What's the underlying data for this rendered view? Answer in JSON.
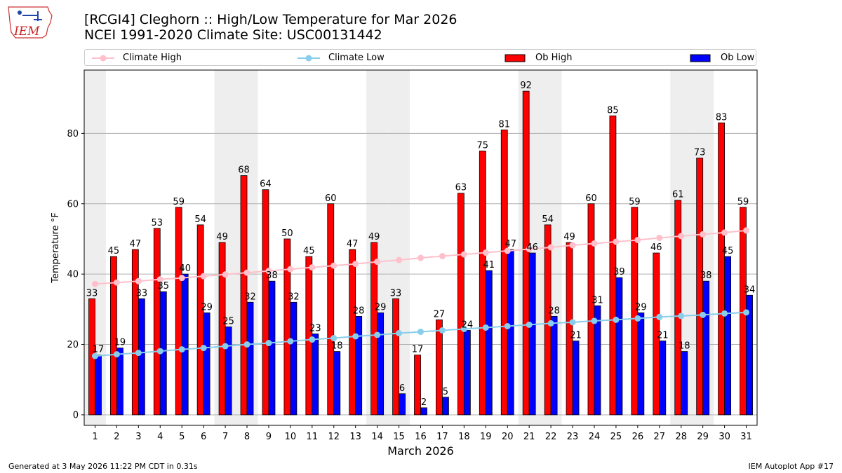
{
  "header": {
    "logo_text": "IEM",
    "title_line1": "[RCGI4] Cleghorn :: High/Low Temperature for Mar 2026",
    "title_line2": "NCEI 1991-2020 Climate Site: USC00131442"
  },
  "footer": {
    "generated": "Generated at 3 May 2026 11:22 PM CDT in 0.31s",
    "app": "IEM Autoplot App #17"
  },
  "colors": {
    "ob_high": "#ff0000",
    "ob_low": "#0000ff",
    "climate_high": "#ffc0cb",
    "climate_low": "#87ceeb",
    "weekend_band": "#eeeeee",
    "grid": "#b0b0b0"
  },
  "chart_data": {
    "type": "bar",
    "xlabel": "March 2026",
    "ylabel": "Temperature °F",
    "ylim": [
      -3,
      98
    ],
    "yticks": [
      0,
      20,
      40,
      60,
      80
    ],
    "grid": "horizontal",
    "legend_position": "top",
    "categories": [
      "1",
      "2",
      "3",
      "4",
      "5",
      "6",
      "7",
      "8",
      "9",
      "10",
      "11",
      "12",
      "13",
      "14",
      "15",
      "16",
      "17",
      "18",
      "19",
      "20",
      "21",
      "22",
      "23",
      "24",
      "25",
      "26",
      "27",
      "28",
      "29",
      "30",
      "31"
    ],
    "weekend_days": [
      1,
      7,
      8,
      14,
      15,
      21,
      22,
      28,
      29
    ],
    "series": [
      {
        "name": "Climate High",
        "kind": "line",
        "values": [
          37.2,
          37.6,
          38.0,
          38.5,
          38.9,
          39.4,
          39.9,
          40.4,
          40.9,
          41.4,
          41.9,
          42.4,
          42.9,
          43.5,
          44.0,
          44.6,
          45.1,
          45.6,
          46.1,
          46.6,
          47.1,
          47.6,
          48.2,
          48.7,
          49.2,
          49.7,
          50.3,
          50.8,
          51.3,
          51.8,
          52.4
        ]
      },
      {
        "name": "Climate Low",
        "kind": "line",
        "values": [
          16.7,
          17.2,
          17.6,
          18.1,
          18.6,
          19.0,
          19.5,
          20.0,
          20.4,
          20.9,
          21.4,
          21.8,
          22.3,
          22.7,
          23.2,
          23.6,
          24.0,
          24.4,
          24.8,
          25.2,
          25.6,
          26.0,
          26.3,
          26.7,
          27.0,
          27.4,
          27.8,
          28.1,
          28.4,
          28.8,
          29.1
        ]
      },
      {
        "name": "Ob High",
        "kind": "bar",
        "values": [
          33,
          45,
          47,
          53,
          59,
          54,
          49,
          68,
          64,
          50,
          45,
          60,
          47,
          49,
          33,
          17,
          27,
          63,
          75,
          81,
          92,
          54,
          49,
          60,
          85,
          59,
          46,
          61,
          73,
          83,
          59
        ]
      },
      {
        "name": "Ob Low",
        "kind": "bar",
        "values": [
          17,
          19,
          33,
          35,
          40,
          29,
          25,
          32,
          38,
          32,
          23,
          18,
          28,
          29,
          6,
          2,
          5,
          24,
          41,
          47,
          46,
          28,
          21,
          31,
          39,
          29,
          21,
          18,
          38,
          45,
          34
        ]
      }
    ]
  }
}
